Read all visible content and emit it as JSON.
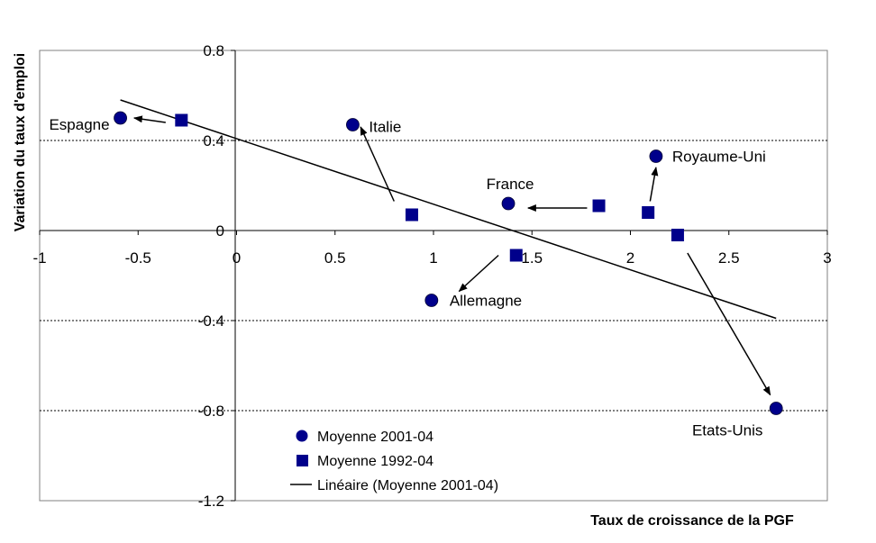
{
  "chart_data": {
    "type": "scatter",
    "xlabel": "Taux de croissance de la PGF",
    "ylabel": "Variation du taux d'emploi",
    "xlim": [
      -1,
      3
    ],
    "ylim": [
      -1.2,
      0.8
    ],
    "x_ticks": [
      -1,
      -0.5,
      0,
      0.5,
      1,
      1.5,
      2,
      2.5,
      3
    ],
    "y_ticks": [
      0.8,
      0.4,
      0,
      -0.4,
      -0.8,
      -1.2
    ],
    "x_tick_labels": [
      "-1",
      "-0.5",
      "0",
      "0.5",
      "1",
      "1.5",
      "2",
      "2.5",
      "3"
    ],
    "y_tick_labels": [
      "0.8",
      "0.4",
      "0",
      "-0.4",
      "-0.8",
      "-1.2"
    ],
    "gridlines_y": [
      0.4,
      -0.4,
      -0.8
    ],
    "series": [
      {
        "name": "Moyenne 2001-04",
        "marker": "circle",
        "color": "#00008B",
        "points": [
          {
            "country": "Espagne",
            "x": -0.59,
            "y": 0.5
          },
          {
            "country": "Italie",
            "x": 0.59,
            "y": 0.47
          },
          {
            "country": "France",
            "x": 1.38,
            "y": 0.12
          },
          {
            "country": "Royaume-Uni",
            "x": 2.13,
            "y": 0.33
          },
          {
            "country": "Allemagne",
            "x": 0.99,
            "y": -0.31
          },
          {
            "country": "Etats-Unis",
            "x": 2.74,
            "y": -0.79
          }
        ]
      },
      {
        "name": "Moyenne 1992-04",
        "marker": "square",
        "color": "#00008B",
        "points": [
          {
            "country": "Espagne",
            "x": -0.28,
            "y": 0.49
          },
          {
            "country": "Italie",
            "x": 0.89,
            "y": 0.07
          },
          {
            "country": "France",
            "x": 1.84,
            "y": 0.11
          },
          {
            "country": "Royaume-Uni",
            "x": 2.09,
            "y": 0.08
          },
          {
            "country": "Allemagne",
            "x": 1.42,
            "y": -0.11
          },
          {
            "country": "Etats-Unis",
            "x": 2.24,
            "y": -0.02
          }
        ]
      }
    ],
    "trendline": {
      "name": "Linéaire (Moyenne 2001-04)",
      "color": "#000000",
      "from": {
        "x": -0.59,
        "y": 0.58
      },
      "to": {
        "x": 2.74,
        "y": -0.39
      }
    },
    "arrows": [
      {
        "country": "Espagne",
        "from": {
          "x": -0.36,
          "y": 0.48
        },
        "to": {
          "x": -0.52,
          "y": 0.5
        }
      },
      {
        "country": "Italie",
        "from": {
          "x": 0.8,
          "y": 0.13
        },
        "to": {
          "x": 0.63,
          "y": 0.46
        }
      },
      {
        "country": "France",
        "from": {
          "x": 1.78,
          "y": 0.1
        },
        "to": {
          "x": 1.48,
          "y": 0.1
        }
      },
      {
        "country": "Royaume-Uni",
        "from": {
          "x": 2.1,
          "y": 0.13
        },
        "to": {
          "x": 2.13,
          "y": 0.28
        }
      },
      {
        "country": "Allemagne",
        "from": {
          "x": 1.33,
          "y": -0.11
        },
        "to": {
          "x": 1.13,
          "y": -0.27
        }
      },
      {
        "country": "Etats-Unis",
        "from": {
          "x": 2.29,
          "y": -0.1
        },
        "to": {
          "x": 2.71,
          "y": -0.73
        }
      }
    ],
    "labels": [
      {
        "text": "Espagne",
        "anchor": "Espagne"
      },
      {
        "text": "Italie",
        "anchor": "Italie"
      },
      {
        "text": "France",
        "anchor": "France"
      },
      {
        "text": "Royaume-Uni",
        "anchor": "Royaume-Uni"
      },
      {
        "text": "Allemagne",
        "anchor": "Allemagne"
      },
      {
        "text": "Etats-Unis",
        "anchor": "Etats-Unis"
      }
    ],
    "legend": {
      "position": "bottom-left",
      "entries": [
        "Moyenne 2001-04",
        "Moyenne 1992-04",
        "Linéaire (Moyenne 2001-04)"
      ]
    }
  }
}
